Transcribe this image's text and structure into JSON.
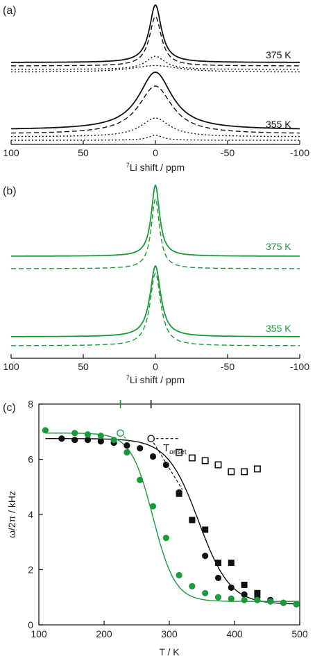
{
  "panel_a": {
    "label": "(a)",
    "xlabel_sup": "7",
    "xlabel": "Li shift / ppm",
    "traces": [
      {
        "temp": "375 K"
      },
      {
        "temp": "355 K"
      }
    ],
    "color": "#111111"
  },
  "panel_b": {
    "label": "(b)",
    "xlabel_sup": "7",
    "xlabel": "Li shift / ppm",
    "traces": [
      {
        "temp": "375 K"
      },
      {
        "temp": "355 K"
      }
    ],
    "color": "#1a9a3a"
  },
  "panel_c": {
    "label": "(c)",
    "annotation_main": "T",
    "annotation_sub": "onset",
    "ylabel": "ω/2π / kHz",
    "xlabel": "T / K"
  },
  "chart_data": [
    {
      "type": "line",
      "panel": "(a)",
      "xlabel": "7Li shift / ppm",
      "xlim": [
        100,
        -100
      ],
      "xticks": [
        100,
        50,
        0,
        -50,
        -100
      ],
      "series": [
        {
          "temp": "375 K",
          "style": "solid",
          "center": 0,
          "hwhm": 5,
          "height": 1.0
        },
        {
          "temp": "375 K",
          "style": "dashed",
          "center": 0,
          "hwhm": 5,
          "height": 0.95
        },
        {
          "temp": "375 K",
          "style": "dotted",
          "center": 0,
          "hwhm": 8,
          "height": 0.45
        },
        {
          "temp": "375 K",
          "style": "dotted",
          "center": 0,
          "hwhm": 20,
          "height": 0.3
        },
        {
          "temp": "355 K",
          "style": "solid",
          "center": 0,
          "hwhm": 14,
          "height": 1.0
        },
        {
          "temp": "355 K",
          "style": "dashed",
          "center": 0,
          "hwhm": 14,
          "height": 0.92
        },
        {
          "temp": "355 K",
          "style": "dotted",
          "center": 0,
          "hwhm": 12,
          "height": 0.6
        },
        {
          "temp": "355 K",
          "style": "dotted",
          "center": 0,
          "hwhm": 6,
          "height": 0.28
        }
      ]
    },
    {
      "type": "line",
      "panel": "(b)",
      "xlabel": "7Li shift / ppm",
      "xlim": [
        100,
        -100
      ],
      "xticks": [
        100,
        50,
        0,
        -50,
        -100
      ],
      "series": [
        {
          "temp": "375 K",
          "style": "solid",
          "center": 0,
          "hwhm": 3.5,
          "height": 1.0
        },
        {
          "temp": "375 K",
          "style": "dashed",
          "center": 0,
          "hwhm": 3.5,
          "height": 0.95
        },
        {
          "temp": "355 K",
          "style": "solid",
          "center": 0,
          "hwhm": 4.5,
          "height": 1.0
        },
        {
          "temp": "355 K",
          "style": "dashed",
          "center": 0,
          "hwhm": 4.5,
          "height": 0.95
        }
      ]
    },
    {
      "type": "scatter",
      "panel": "(c)",
      "xlabel": "T / K",
      "ylabel": "ω/2π / kHz",
      "xlim": [
        100,
        500
      ],
      "ylim": [
        0,
        8
      ],
      "xticks": [
        100,
        200,
        300,
        400,
        500
      ],
      "yticks": [
        0,
        2,
        4,
        6,
        8
      ],
      "onset_markers": [
        {
          "x": 225,
          "color": "#1a9a3a"
        },
        {
          "x": 272,
          "color": "#111111"
        }
      ],
      "series": [
        {
          "marker": "filled-circle",
          "color": "#111111",
          "x": [
            135,
            155,
            175,
            195,
            215,
            235,
            255,
            275,
            295,
            315,
            335,
            355,
            375,
            395,
            415,
            435,
            455,
            475,
            495
          ],
          "y": [
            6.75,
            6.7,
            6.7,
            6.65,
            6.6,
            6.5,
            6.4,
            6.1,
            5.8,
            4.8,
            3.8,
            2.5,
            1.7,
            1.35,
            1.1,
            1.0,
            0.9,
            0.8,
            0.75
          ]
        },
        {
          "marker": "filled-square",
          "color": "#111111",
          "x": [
            315,
            335,
            355,
            375,
            395,
            415,
            435
          ],
          "y": [
            4.75,
            3.8,
            3.45,
            2.25,
            2.25,
            1.45,
            1.15
          ]
        },
        {
          "marker": "open-square",
          "color": "#111111",
          "x": [
            315,
            335,
            355,
            375,
            395,
            415,
            435
          ],
          "y": [
            6.25,
            6.05,
            5.95,
            5.8,
            5.55,
            5.55,
            5.65
          ]
        },
        {
          "marker": "filled-circle",
          "color": "#1a9a3a",
          "x": [
            110,
            155,
            175,
            195,
            215,
            235,
            255,
            275,
            295,
            315,
            335,
            355,
            375,
            395,
            415,
            435,
            455,
            475,
            495
          ],
          "y": [
            7.05,
            6.95,
            6.9,
            6.85,
            6.7,
            6.25,
            5.25,
            4.3,
            3.15,
            1.8,
            1.4,
            1.15,
            1.0,
            0.95,
            0.9,
            0.9,
            0.85,
            0.8,
            0.75
          ]
        },
        {
          "marker": "open-circle",
          "color": "#111111",
          "x": [
            272
          ],
          "y": [
            6.75
          ]
        },
        {
          "marker": "open-circle",
          "color": "#1a9a3a",
          "x": [
            225
          ],
          "y": [
            6.95
          ]
        }
      ],
      "fits": [
        {
          "color": "#111111",
          "plateau": 6.75,
          "floor": 0.75,
          "midpoint": 345,
          "width": 24
        },
        {
          "color": "#1a9a3a",
          "plateau": 6.95,
          "floor": 0.85,
          "midpoint": 275,
          "width": 17
        }
      ]
    }
  ]
}
